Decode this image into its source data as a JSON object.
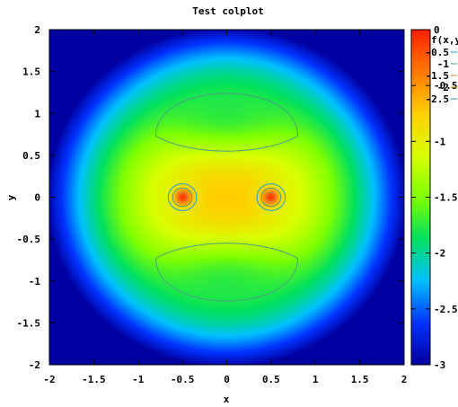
{
  "chart_data": {
    "type": "heatmap",
    "title": "Test colplot",
    "xlabel": "x",
    "ylabel": "y",
    "xlim": [
      -2,
      2
    ],
    "ylim": [
      -2,
      2
    ],
    "x_ticks": [
      "-2",
      "-1.5",
      "-1",
      "-0.5",
      "0",
      "0.5",
      "1",
      "1.5",
      "2"
    ],
    "y_ticks": [
      "-2",
      "-1.5",
      "-1",
      "-0.5",
      "0",
      "0.5",
      "1",
      "1.5",
      "2"
    ],
    "colorbar": {
      "range": [
        -3,
        0
      ],
      "ticks": [
        "0",
        "-0.5",
        "-1",
        "-1.5",
        "-2",
        "-2.5",
        "-3"
      ],
      "colors": [
        "#0000a0",
        "#0033ff",
        "#00c0ff",
        "#00e060",
        "#80ff00",
        "#d8ff00",
        "#ffd000",
        "#ff7a00",
        "#ff2000"
      ]
    },
    "legend": {
      "placement": "top-right",
      "title": "f(x,y)",
      "entries": [
        {
          "label": "-0.5",
          "color": "#1aa0d8"
        },
        {
          "label": "-1",
          "color": "#4aa080"
        },
        {
          "label": "-1.5",
          "color": "#d08a40"
        },
        {
          "label": "-2",
          "color": "#c0a000"
        },
        {
          "label": "-2.5",
          "color": "#2090c0"
        }
      ]
    },
    "features": {
      "sources": [
        {
          "x": -0.5,
          "y": 0
        },
        {
          "x": 0.5,
          "y": 0
        }
      ],
      "contour_levels": [
        -0.5,
        -1,
        -1.5,
        -2,
        -2.5
      ]
    }
  }
}
